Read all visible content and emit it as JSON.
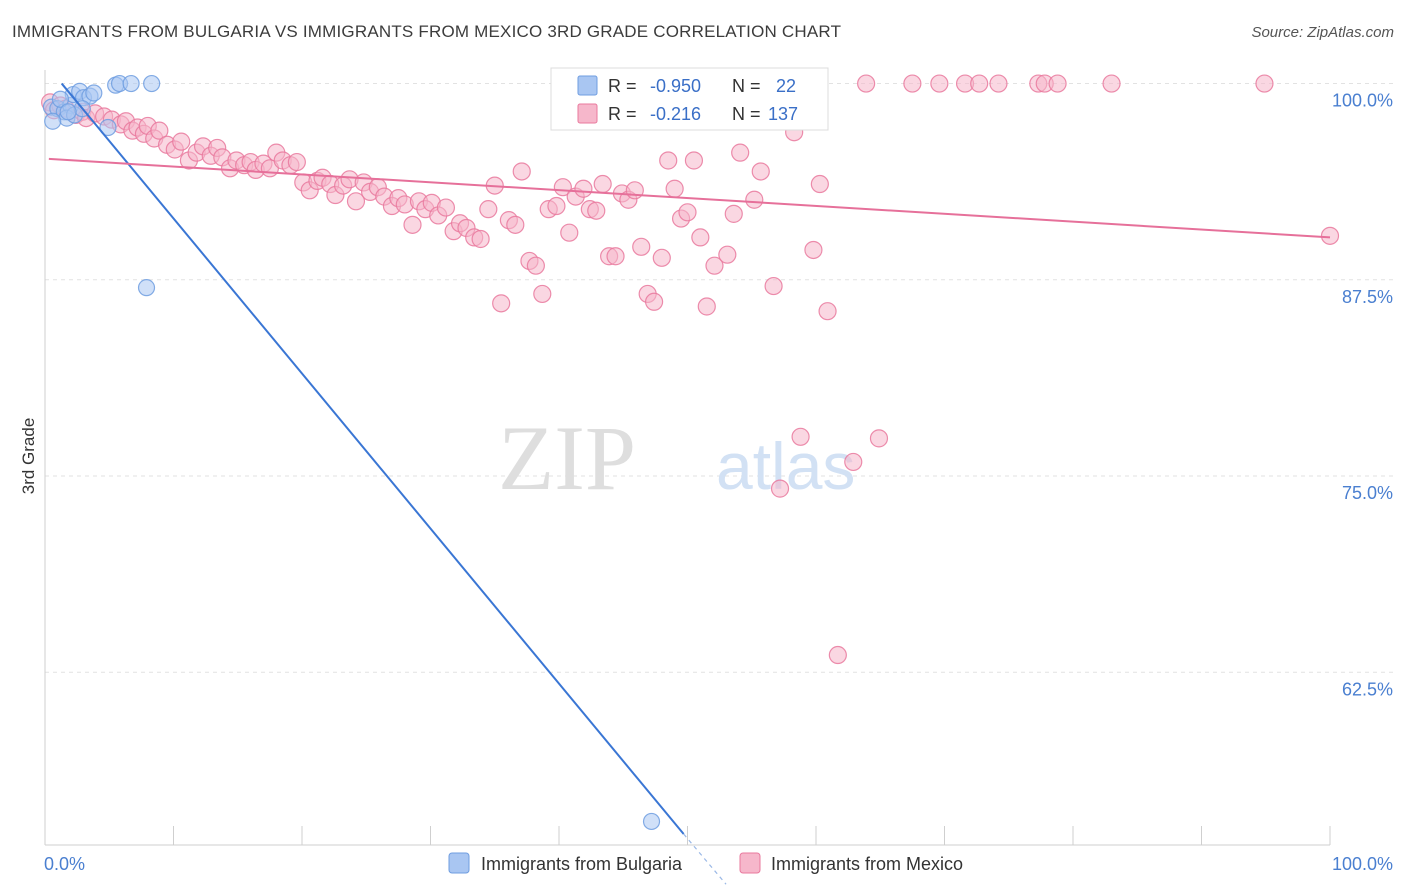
{
  "title": "IMMIGRANTS FROM BULGARIA VS IMMIGRANTS FROM MEXICO 3RD GRADE CORRELATION CHART",
  "source": "Source: ZipAtlas.com",
  "watermark": {
    "left": "ZIP",
    "right": "atlas"
  },
  "stats": [
    {
      "r_label": "R = ",
      "r": "-0.950",
      "n_label": "N = ",
      "n": "22",
      "color": "#6f9de0",
      "fill": "#a9c6f2"
    },
    {
      "r_label": "R = ",
      "r": "-0.216",
      "n_label": "N = ",
      "n": "137",
      "color": "#e9799e",
      "fill": "#f6b7cb"
    }
  ],
  "chart_data": {
    "type": "scatter",
    "title": "IMMIGRANTS FROM BULGARIA VS IMMIGRANTS FROM MEXICO 3RD GRADE CORRELATION CHART",
    "xlabel": "",
    "ylabel": "3rd Grade",
    "xlim": [
      0,
      100
    ],
    "ylim": [
      51.5,
      101.5
    ],
    "x_tick_labels": [
      "0.0%",
      "100.0%"
    ],
    "y_ticks": [
      62.5,
      75.0,
      87.5,
      100.0
    ],
    "y_tick_labels": [
      "62.5%",
      "75.0%",
      "87.5%",
      "100.0%"
    ],
    "grid": true,
    "legend_position": "bottom",
    "series": [
      {
        "name": "Immigrants from Bulgaria",
        "color": "#6f9de0",
        "fill": "#a9c6f2",
        "trend": {
          "x": [
            1.3,
            49.7
          ],
          "y": [
            100.0,
            52.2
          ]
        },
        "trend_dash": {
          "x": [
            49.7,
            53.0
          ],
          "y": [
            52.2,
            49.0
          ]
        },
        "points": [
          {
            "x": 0.5,
            "y": 98.5
          },
          {
            "x": 1.0,
            "y": 98.4
          },
          {
            "x": 1.5,
            "y": 98.2
          },
          {
            "x": 2.0,
            "y": 98.6
          },
          {
            "x": 2.2,
            "y": 99.3
          },
          {
            "x": 2.7,
            "y": 99.5
          },
          {
            "x": 1.7,
            "y": 97.8
          },
          {
            "x": 3.0,
            "y": 99.1
          },
          {
            "x": 3.5,
            "y": 99.2
          },
          {
            "x": 3.8,
            "y": 99.4
          },
          {
            "x": 5.5,
            "y": 99.9
          },
          {
            "x": 5.8,
            "y": 100.0
          },
          {
            "x": 6.7,
            "y": 100.0
          },
          {
            "x": 8.3,
            "y": 100.0
          },
          {
            "x": 2.3,
            "y": 98.0
          },
          {
            "x": 1.2,
            "y": 99.0
          },
          {
            "x": 0.6,
            "y": 97.6
          },
          {
            "x": 4.9,
            "y": 97.2
          },
          {
            "x": 2.9,
            "y": 98.4
          },
          {
            "x": 7.9,
            "y": 87.0
          },
          {
            "x": 47.2,
            "y": 53.0
          },
          {
            "x": 1.8,
            "y": 98.2
          }
        ]
      },
      {
        "name": "Immigrants from Mexico",
        "color": "#e9799e",
        "fill": "#f6b7cb",
        "trend": {
          "x": [
            0.3,
            100.0
          ],
          "y": [
            95.2,
            90.2
          ]
        },
        "points": [
          {
            "x": 0.4,
            "y": 98.8
          },
          {
            "x": 0.7,
            "y": 98.3
          },
          {
            "x": 1.2,
            "y": 98.6
          },
          {
            "x": 1.6,
            "y": 98.4
          },
          {
            "x": 2.4,
            "y": 98.0
          },
          {
            "x": 2.9,
            "y": 98.2
          },
          {
            "x": 3.2,
            "y": 97.8
          },
          {
            "x": 3.9,
            "y": 98.1
          },
          {
            "x": 4.6,
            "y": 97.9
          },
          {
            "x": 5.2,
            "y": 97.7
          },
          {
            "x": 5.9,
            "y": 97.4
          },
          {
            "x": 6.3,
            "y": 97.6
          },
          {
            "x": 6.8,
            "y": 97.0
          },
          {
            "x": 7.2,
            "y": 97.2
          },
          {
            "x": 7.7,
            "y": 96.8
          },
          {
            "x": 8.0,
            "y": 97.3
          },
          {
            "x": 8.5,
            "y": 96.5
          },
          {
            "x": 8.9,
            "y": 97.0
          },
          {
            "x": 9.5,
            "y": 96.1
          },
          {
            "x": 10.1,
            "y": 95.8
          },
          {
            "x": 10.6,
            "y": 96.3
          },
          {
            "x": 11.2,
            "y": 95.1
          },
          {
            "x": 11.8,
            "y": 95.6
          },
          {
            "x": 12.3,
            "y": 96.0
          },
          {
            "x": 12.9,
            "y": 95.4
          },
          {
            "x": 13.4,
            "y": 95.9
          },
          {
            "x": 13.8,
            "y": 95.3
          },
          {
            "x": 14.4,
            "y": 94.6
          },
          {
            "x": 14.9,
            "y": 95.1
          },
          {
            "x": 15.5,
            "y": 94.8
          },
          {
            "x": 16.0,
            "y": 95.0
          },
          {
            "x": 16.4,
            "y": 94.5
          },
          {
            "x": 17.0,
            "y": 94.9
          },
          {
            "x": 17.5,
            "y": 94.6
          },
          {
            "x": 18.0,
            "y": 95.6
          },
          {
            "x": 18.5,
            "y": 95.1
          },
          {
            "x": 19.1,
            "y": 94.8
          },
          {
            "x": 19.6,
            "y": 95.0
          },
          {
            "x": 20.1,
            "y": 93.7
          },
          {
            "x": 20.6,
            "y": 93.2
          },
          {
            "x": 21.2,
            "y": 93.8
          },
          {
            "x": 21.6,
            "y": 94.0
          },
          {
            "x": 22.2,
            "y": 93.6
          },
          {
            "x": 22.6,
            "y": 92.9
          },
          {
            "x": 23.2,
            "y": 93.5
          },
          {
            "x": 23.7,
            "y": 93.9
          },
          {
            "x": 24.2,
            "y": 92.5
          },
          {
            "x": 24.8,
            "y": 93.7
          },
          {
            "x": 25.3,
            "y": 93.1
          },
          {
            "x": 25.9,
            "y": 93.4
          },
          {
            "x": 26.4,
            "y": 92.8
          },
          {
            "x": 27.0,
            "y": 92.2
          },
          {
            "x": 27.5,
            "y": 92.7
          },
          {
            "x": 28.0,
            "y": 92.3
          },
          {
            "x": 28.6,
            "y": 91.0
          },
          {
            "x": 29.1,
            "y": 92.5
          },
          {
            "x": 29.6,
            "y": 92.0
          },
          {
            "x": 30.1,
            "y": 92.4
          },
          {
            "x": 30.6,
            "y": 91.6
          },
          {
            "x": 31.2,
            "y": 92.1
          },
          {
            "x": 31.8,
            "y": 90.6
          },
          {
            "x": 32.3,
            "y": 91.1
          },
          {
            "x": 32.8,
            "y": 90.8
          },
          {
            "x": 33.4,
            "y": 90.2
          },
          {
            "x": 33.9,
            "y": 90.1
          },
          {
            "x": 34.5,
            "y": 92.0
          },
          {
            "x": 35.0,
            "y": 93.5
          },
          {
            "x": 35.5,
            "y": 86.0
          },
          {
            "x": 36.1,
            "y": 91.3
          },
          {
            "x": 36.6,
            "y": 91.0
          },
          {
            "x": 37.1,
            "y": 94.4
          },
          {
            "x": 37.7,
            "y": 88.7
          },
          {
            "x": 38.2,
            "y": 88.4
          },
          {
            "x": 38.7,
            "y": 86.6
          },
          {
            "x": 39.2,
            "y": 92.0
          },
          {
            "x": 39.8,
            "y": 92.2
          },
          {
            "x": 40.3,
            "y": 93.4
          },
          {
            "x": 40.8,
            "y": 90.5
          },
          {
            "x": 41.3,
            "y": 92.8
          },
          {
            "x": 41.9,
            "y": 93.3
          },
          {
            "x": 42.4,
            "y": 92.0
          },
          {
            "x": 42.9,
            "y": 91.9
          },
          {
            "x": 43.4,
            "y": 93.6
          },
          {
            "x": 43.9,
            "y": 89.0
          },
          {
            "x": 44.4,
            "y": 89.0
          },
          {
            "x": 44.9,
            "y": 93.0
          },
          {
            "x": 45.4,
            "y": 92.6
          },
          {
            "x": 45.9,
            "y": 93.2
          },
          {
            "x": 46.4,
            "y": 89.6
          },
          {
            "x": 46.9,
            "y": 86.6
          },
          {
            "x": 47.4,
            "y": 86.1
          },
          {
            "x": 48.0,
            "y": 88.9
          },
          {
            "x": 48.5,
            "y": 95.1
          },
          {
            "x": 49.0,
            "y": 93.3
          },
          {
            "x": 49.5,
            "y": 91.4
          },
          {
            "x": 50.0,
            "y": 91.8
          },
          {
            "x": 50.5,
            "y": 95.1
          },
          {
            "x": 51.0,
            "y": 90.2
          },
          {
            "x": 51.5,
            "y": 85.8
          },
          {
            "x": 52.1,
            "y": 88.4
          },
          {
            "x": 53.1,
            "y": 89.1
          },
          {
            "x": 53.6,
            "y": 91.7
          },
          {
            "x": 54.1,
            "y": 95.6
          },
          {
            "x": 55.2,
            "y": 92.6
          },
          {
            "x": 55.7,
            "y": 94.4
          },
          {
            "x": 56.7,
            "y": 87.1
          },
          {
            "x": 57.2,
            "y": 74.2
          },
          {
            "x": 58.3,
            "y": 96.9
          },
          {
            "x": 58.8,
            "y": 77.5
          },
          {
            "x": 59.8,
            "y": 89.4
          },
          {
            "x": 60.3,
            "y": 93.6
          },
          {
            "x": 60.9,
            "y": 85.5
          },
          {
            "x": 61.7,
            "y": 63.6
          },
          {
            "x": 62.9,
            "y": 75.9
          },
          {
            "x": 64.9,
            "y": 77.4
          },
          {
            "x": 47.4,
            "y": 100.0
          },
          {
            "x": 49.5,
            "y": 100.0
          },
          {
            "x": 52.1,
            "y": 100.0
          },
          {
            "x": 55.7,
            "y": 100.0
          },
          {
            "x": 59.3,
            "y": 100.0
          },
          {
            "x": 63.9,
            "y": 100.0
          },
          {
            "x": 67.5,
            "y": 100.0
          },
          {
            "x": 69.6,
            "y": 100.0
          },
          {
            "x": 71.6,
            "y": 100.0
          },
          {
            "x": 72.7,
            "y": 100.0
          },
          {
            "x": 74.2,
            "y": 100.0
          },
          {
            "x": 77.3,
            "y": 100.0
          },
          {
            "x": 77.8,
            "y": 100.0
          },
          {
            "x": 78.8,
            "y": 100.0
          },
          {
            "x": 83.0,
            "y": 100.0
          },
          {
            "x": 94.9,
            "y": 100.0
          },
          {
            "x": 100.0,
            "y": 90.3
          },
          {
            "x": 55.2,
            "y": 100.0
          }
        ]
      }
    ]
  }
}
